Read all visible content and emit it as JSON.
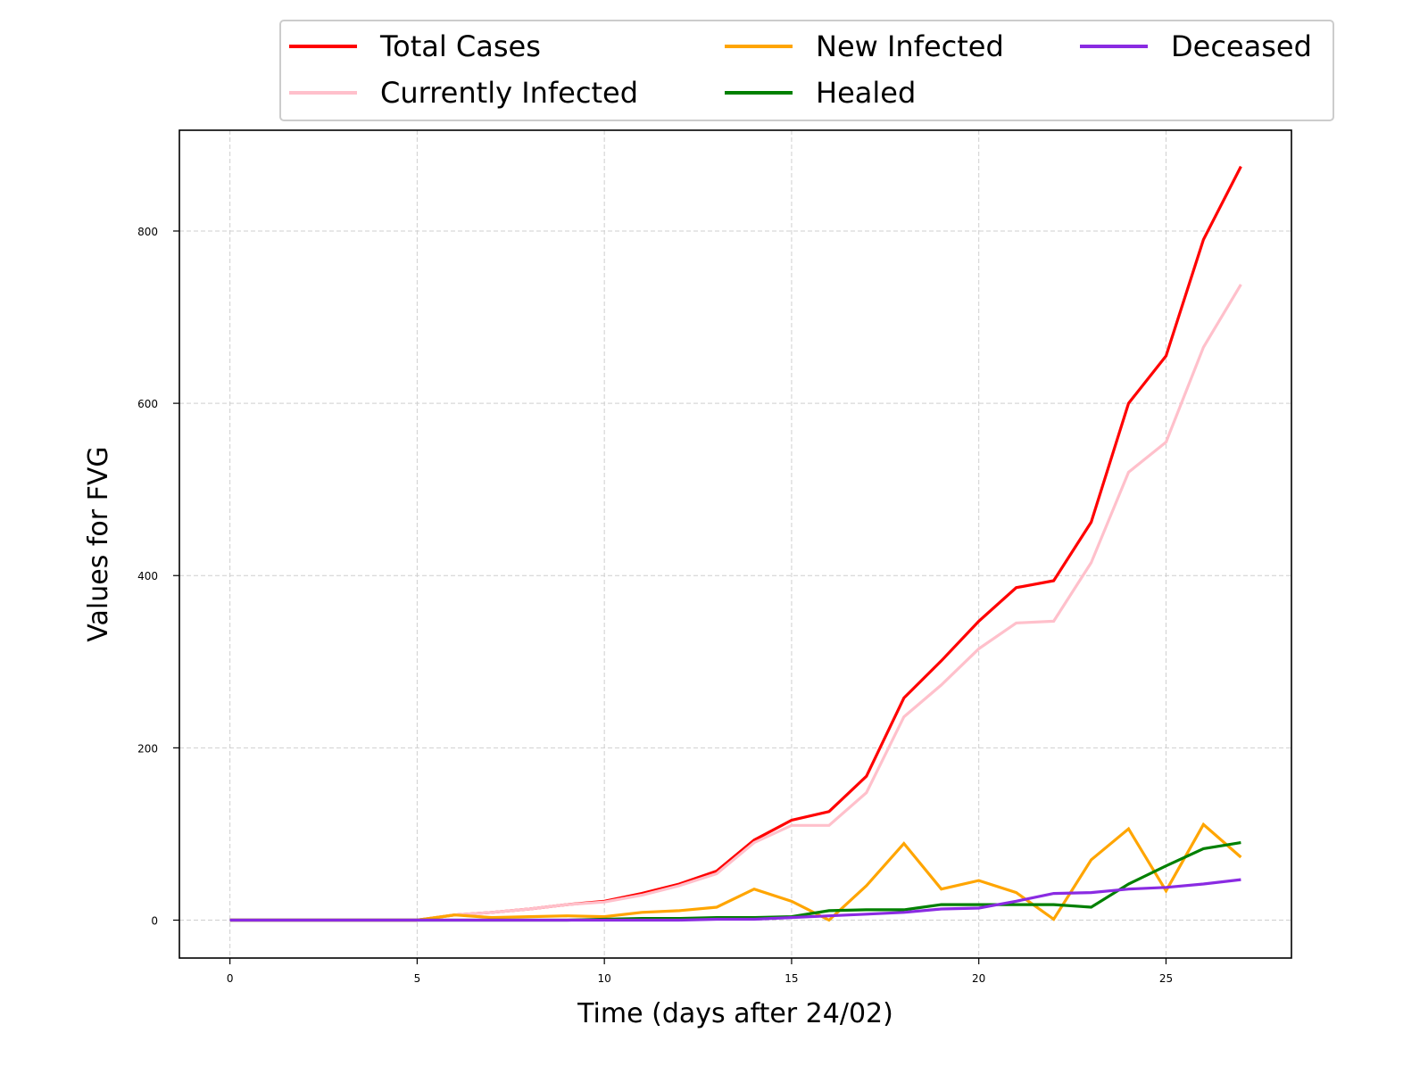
{
  "chart_data": {
    "type": "line",
    "xlabel": "Time (days after 24/02)",
    "ylabel": "Values for FVG",
    "xlim": [
      -1.35,
      28.35
    ],
    "ylim": [
      -44,
      917
    ],
    "xticks": [
      0,
      5,
      10,
      15,
      20,
      25
    ],
    "yticks": [
      0,
      200,
      400,
      600,
      800
    ],
    "grid": true,
    "legend_position": "top, above plot",
    "legend_columns": 3,
    "x": [
      0,
      1,
      2,
      3,
      4,
      5,
      6,
      7,
      8,
      9,
      10,
      11,
      12,
      13,
      14,
      15,
      16,
      17,
      18,
      19,
      20,
      21,
      22,
      23,
      24,
      25,
      26,
      27
    ],
    "series": [
      {
        "name": "Total Cases",
        "color": "#ff0000",
        "values": [
          0,
          0,
          0,
          0,
          0,
          0,
          6,
          9,
          13,
          18,
          22,
          31,
          42,
          57,
          93,
          116,
          126,
          167,
          258,
          301,
          347,
          386,
          394,
          462,
          600,
          655,
          790,
          875
        ]
      },
      {
        "name": "Currently Infected",
        "color": "#ffc0cb",
        "values": [
          0,
          0,
          0,
          0,
          0,
          0,
          6,
          9,
          13,
          18,
          21,
          29,
          40,
          54,
          90,
          110,
          110,
          148,
          236,
          273,
          315,
          345,
          347,
          415,
          520,
          555,
          665,
          738
        ]
      },
      {
        "name": "New Infected",
        "color": "#ffa500",
        "values": [
          0,
          0,
          0,
          0,
          0,
          0,
          6,
          3,
          4,
          5,
          4,
          9,
          11,
          15,
          36,
          22,
          0,
          40,
          89,
          36,
          46,
          32,
          1,
          70,
          106,
          34,
          111,
          73
        ]
      },
      {
        "name": "Healed",
        "color": "#008000",
        "values": [
          0,
          0,
          0,
          0,
          0,
          0,
          0,
          0,
          0,
          0,
          1,
          2,
          2,
          3,
          3,
          4,
          11,
          12,
          12,
          18,
          18,
          18,
          18,
          15,
          42,
          63,
          83,
          90
        ]
      },
      {
        "name": "Deceased",
        "color": "#8a2be2",
        "values": [
          0,
          0,
          0,
          0,
          0,
          0,
          0,
          0,
          0,
          0,
          0,
          0,
          0,
          1,
          1,
          3,
          5,
          7,
          9,
          13,
          14,
          22,
          31,
          32,
          36,
          38,
          42,
          47
        ]
      }
    ]
  }
}
